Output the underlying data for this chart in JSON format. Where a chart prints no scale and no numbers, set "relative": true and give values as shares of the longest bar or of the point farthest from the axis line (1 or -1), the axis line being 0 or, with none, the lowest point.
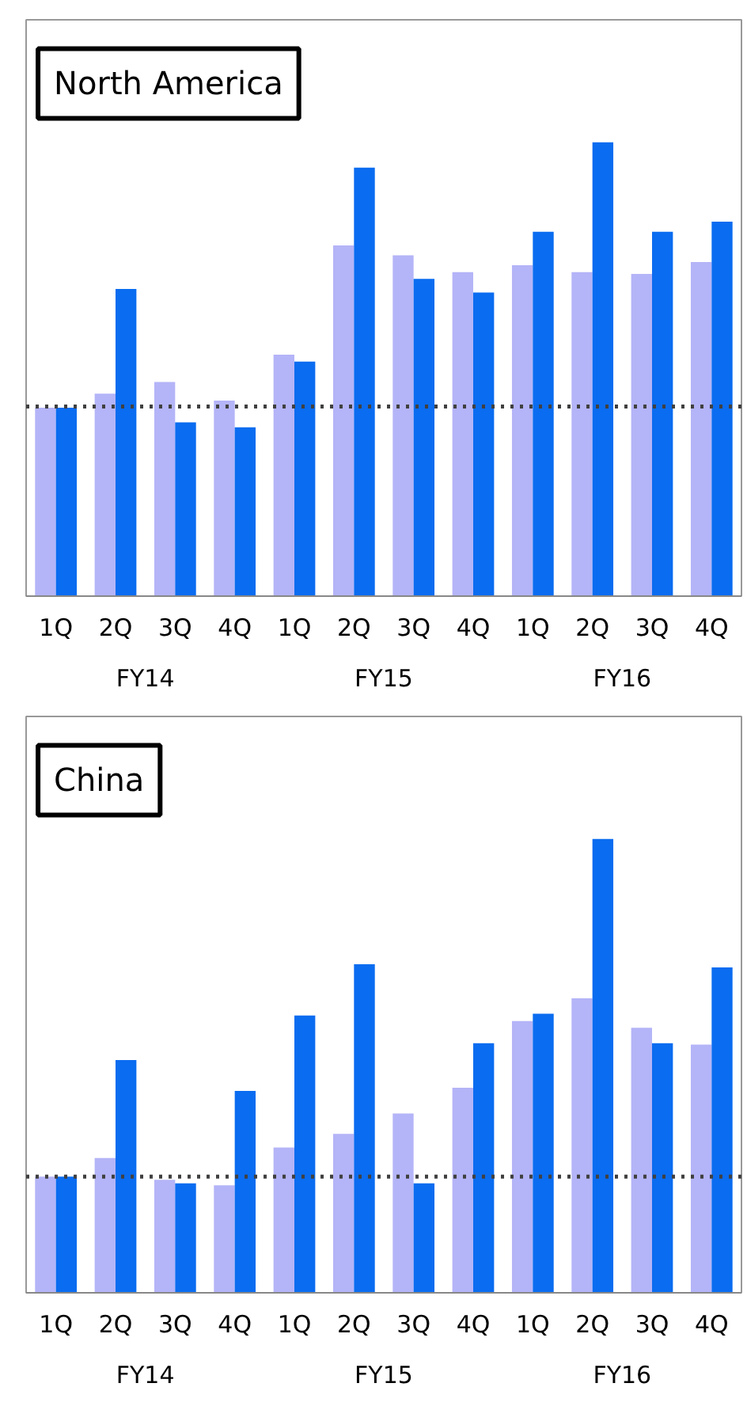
{
  "chart_data": [
    {
      "type": "bar",
      "title": "North America",
      "relative": true,
      "categories": [
        "1Q",
        "2Q",
        "3Q",
        "4Q",
        "1Q",
        "2Q",
        "3Q",
        "4Q",
        "1Q",
        "2Q",
        "3Q",
        "4Q"
      ],
      "annotations": [
        "FY14",
        "FY15",
        "FY16"
      ],
      "series": [
        {
          "color": "#b4b4f8",
          "values": [
            0.415,
            0.446,
            0.472,
            0.431,
            0.532,
            0.773,
            0.751,
            0.714,
            0.729,
            0.714,
            0.71,
            0.736
          ]
        },
        {
          "color": "#0a6cf0",
          "values": [
            0.415,
            0.677,
            0.383,
            0.372,
            0.517,
            0.944,
            0.699,
            0.669,
            0.803,
            1,
            0.803,
            0.825
          ]
        }
      ],
      "ref_lines": [
        {
          "axis": "y",
          "value": 0.418,
          "color": "#404040",
          "line_style": "dotted"
        }
      ]
    },
    {
      "type": "bar",
      "title": "China",
      "relative": true,
      "categories": [
        "1Q",
        "2Q",
        "3Q",
        "4Q",
        "1Q",
        "2Q",
        "3Q",
        "4Q",
        "1Q",
        "2Q",
        "3Q",
        "4Q"
      ],
      "annotations": [
        "FY14",
        "FY15",
        "FY16"
      ],
      "series": [
        {
          "color": "#b4b4f8",
          "values": [
            0.256,
            0.297,
            0.249,
            0.237,
            0.32,
            0.35,
            0.395,
            0.452,
            0.599,
            0.649,
            0.584,
            0.547
          ]
        },
        {
          "color": "#0a6cf0",
          "values": [
            0.256,
            0.513,
            0.241,
            0.445,
            0.611,
            0.724,
            0.241,
            0.55,
            0.615,
            1,
            0.55,
            0.717
          ]
        }
      ],
      "ref_lines": [
        {
          "axis": "y",
          "value": 0.256,
          "color": "#404040",
          "line_style": "dotted"
        }
      ]
    }
  ]
}
